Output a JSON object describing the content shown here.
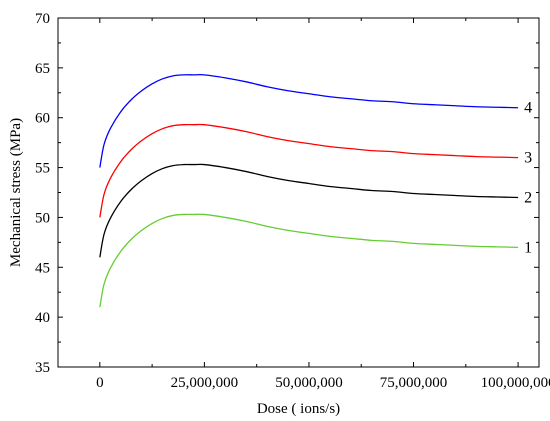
{
  "chart_data": {
    "type": "line",
    "title": "",
    "xlabel": "Dose ( ions/s)",
    "ylabel": "Mechanical stress (MPa)",
    "xlim": [
      -10000000,
      105000000
    ],
    "ylim": [
      35,
      70
    ],
    "xticks": [
      0,
      25000000,
      50000000,
      75000000,
      100000000
    ],
    "xtick_labels": [
      "0",
      "25,000,000",
      "50,000,000",
      "75,000,000",
      "100,000,000"
    ],
    "yticks": [
      35,
      40,
      45,
      50,
      55,
      60,
      65,
      70
    ],
    "ytick_labels": [
      "35",
      "40",
      "45",
      "50",
      "55",
      "60",
      "65",
      "70"
    ],
    "grid": false,
    "legend": "none",
    "x": [
      0,
      1000000,
      2500000,
      5000000,
      7500000,
      10000000,
      12500000,
      15000000,
      17500000,
      20000000,
      22500000,
      25000000,
      30000000,
      35000000,
      40000000,
      45000000,
      50000000,
      55000000,
      60000000,
      65000000,
      70000000,
      75000000,
      80000000,
      85000000,
      90000000,
      95000000,
      100000000
    ],
    "series": [
      {
        "label": "1",
        "color": "#66cc33",
        "values": [
          41.0,
          43.3,
          44.9,
          46.6,
          47.8,
          48.7,
          49.4,
          49.9,
          50.2,
          50.3,
          50.3,
          50.3,
          50.0,
          49.6,
          49.1,
          48.7,
          48.4,
          48.1,
          47.9,
          47.7,
          47.6,
          47.4,
          47.3,
          47.2,
          47.1,
          47.05,
          47.0
        ]
      },
      {
        "label": "2",
        "color": "#000000",
        "values": [
          46.0,
          48.3,
          49.9,
          51.6,
          52.8,
          53.7,
          54.4,
          54.9,
          55.2,
          55.3,
          55.3,
          55.3,
          55.0,
          54.6,
          54.1,
          53.7,
          53.4,
          53.1,
          52.9,
          52.7,
          52.6,
          52.4,
          52.3,
          52.2,
          52.1,
          52.05,
          52.0
        ]
      },
      {
        "label": "3",
        "color": "#ff0000",
        "values": [
          50.0,
          52.3,
          53.9,
          55.6,
          56.8,
          57.7,
          58.4,
          58.9,
          59.2,
          59.3,
          59.3,
          59.3,
          59.0,
          58.6,
          58.1,
          57.7,
          57.4,
          57.1,
          56.9,
          56.7,
          56.6,
          56.4,
          56.3,
          56.2,
          56.1,
          56.05,
          56.0
        ]
      },
      {
        "label": "4",
        "color": "#0000ff",
        "values": [
          55.0,
          57.3,
          58.9,
          60.6,
          61.8,
          62.7,
          63.4,
          63.9,
          64.2,
          64.3,
          64.3,
          64.3,
          64.0,
          63.6,
          63.1,
          62.7,
          62.4,
          62.1,
          61.9,
          61.7,
          61.6,
          61.4,
          61.3,
          61.2,
          61.1,
          61.05,
          61.0
        ]
      }
    ]
  }
}
